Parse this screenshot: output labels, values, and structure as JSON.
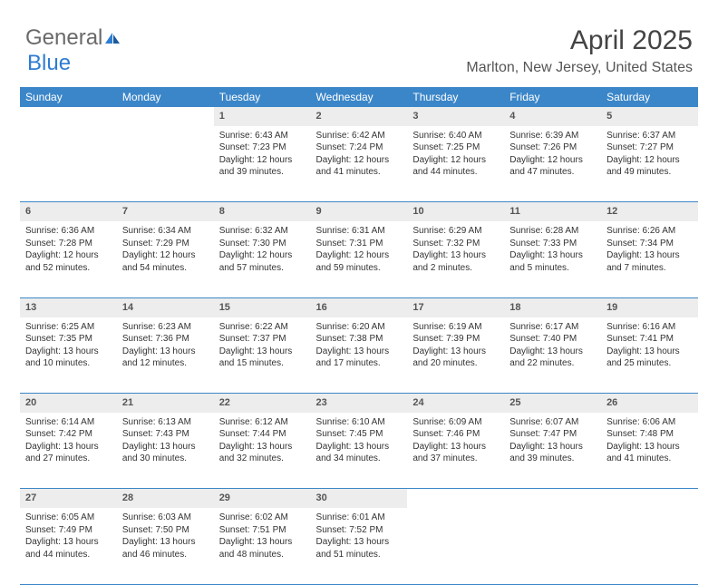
{
  "logo": {
    "text1": "General",
    "text2": "Blue"
  },
  "title": "April 2025",
  "location": "Marlton, New Jersey, United States",
  "colors": {
    "header_bg": "#3b86c8",
    "header_text": "#ffffff",
    "daynum_bg": "#ededed",
    "row_divider": "#3b86c8",
    "logo_gray": "#6a6a6a",
    "logo_blue": "#2d7dd2"
  },
  "weekdays": [
    "Sunday",
    "Monday",
    "Tuesday",
    "Wednesday",
    "Thursday",
    "Friday",
    "Saturday"
  ],
  "weeks": [
    {
      "days": [
        null,
        null,
        {
          "n": "1",
          "sunrise": "6:43 AM",
          "sunset": "7:23 PM",
          "day_h": "12",
          "day_m": "39"
        },
        {
          "n": "2",
          "sunrise": "6:42 AM",
          "sunset": "7:24 PM",
          "day_h": "12",
          "day_m": "41"
        },
        {
          "n": "3",
          "sunrise": "6:40 AM",
          "sunset": "7:25 PM",
          "day_h": "12",
          "day_m": "44"
        },
        {
          "n": "4",
          "sunrise": "6:39 AM",
          "sunset": "7:26 PM",
          "day_h": "12",
          "day_m": "47"
        },
        {
          "n": "5",
          "sunrise": "6:37 AM",
          "sunset": "7:27 PM",
          "day_h": "12",
          "day_m": "49"
        }
      ]
    },
    {
      "days": [
        {
          "n": "6",
          "sunrise": "6:36 AM",
          "sunset": "7:28 PM",
          "day_h": "12",
          "day_m": "52"
        },
        {
          "n": "7",
          "sunrise": "6:34 AM",
          "sunset": "7:29 PM",
          "day_h": "12",
          "day_m": "54"
        },
        {
          "n": "8",
          "sunrise": "6:32 AM",
          "sunset": "7:30 PM",
          "day_h": "12",
          "day_m": "57"
        },
        {
          "n": "9",
          "sunrise": "6:31 AM",
          "sunset": "7:31 PM",
          "day_h": "12",
          "day_m": "59"
        },
        {
          "n": "10",
          "sunrise": "6:29 AM",
          "sunset": "7:32 PM",
          "day_h": "13",
          "day_m": "2"
        },
        {
          "n": "11",
          "sunrise": "6:28 AM",
          "sunset": "7:33 PM",
          "day_h": "13",
          "day_m": "5"
        },
        {
          "n": "12",
          "sunrise": "6:26 AM",
          "sunset": "7:34 PM",
          "day_h": "13",
          "day_m": "7"
        }
      ]
    },
    {
      "days": [
        {
          "n": "13",
          "sunrise": "6:25 AM",
          "sunset": "7:35 PM",
          "day_h": "13",
          "day_m": "10"
        },
        {
          "n": "14",
          "sunrise": "6:23 AM",
          "sunset": "7:36 PM",
          "day_h": "13",
          "day_m": "12"
        },
        {
          "n": "15",
          "sunrise": "6:22 AM",
          "sunset": "7:37 PM",
          "day_h": "13",
          "day_m": "15"
        },
        {
          "n": "16",
          "sunrise": "6:20 AM",
          "sunset": "7:38 PM",
          "day_h": "13",
          "day_m": "17"
        },
        {
          "n": "17",
          "sunrise": "6:19 AM",
          "sunset": "7:39 PM",
          "day_h": "13",
          "day_m": "20"
        },
        {
          "n": "18",
          "sunrise": "6:17 AM",
          "sunset": "7:40 PM",
          "day_h": "13",
          "day_m": "22"
        },
        {
          "n": "19",
          "sunrise": "6:16 AM",
          "sunset": "7:41 PM",
          "day_h": "13",
          "day_m": "25"
        }
      ]
    },
    {
      "days": [
        {
          "n": "20",
          "sunrise": "6:14 AM",
          "sunset": "7:42 PM",
          "day_h": "13",
          "day_m": "27"
        },
        {
          "n": "21",
          "sunrise": "6:13 AM",
          "sunset": "7:43 PM",
          "day_h": "13",
          "day_m": "30"
        },
        {
          "n": "22",
          "sunrise": "6:12 AM",
          "sunset": "7:44 PM",
          "day_h": "13",
          "day_m": "32"
        },
        {
          "n": "23",
          "sunrise": "6:10 AM",
          "sunset": "7:45 PM",
          "day_h": "13",
          "day_m": "34"
        },
        {
          "n": "24",
          "sunrise": "6:09 AM",
          "sunset": "7:46 PM",
          "day_h": "13",
          "day_m": "37"
        },
        {
          "n": "25",
          "sunrise": "6:07 AM",
          "sunset": "7:47 PM",
          "day_h": "13",
          "day_m": "39"
        },
        {
          "n": "26",
          "sunrise": "6:06 AM",
          "sunset": "7:48 PM",
          "day_h": "13",
          "day_m": "41"
        }
      ]
    },
    {
      "days": [
        {
          "n": "27",
          "sunrise": "6:05 AM",
          "sunset": "7:49 PM",
          "day_h": "13",
          "day_m": "44"
        },
        {
          "n": "28",
          "sunrise": "6:03 AM",
          "sunset": "7:50 PM",
          "day_h": "13",
          "day_m": "46"
        },
        {
          "n": "29",
          "sunrise": "6:02 AM",
          "sunset": "7:51 PM",
          "day_h": "13",
          "day_m": "48"
        },
        {
          "n": "30",
          "sunrise": "6:01 AM",
          "sunset": "7:52 PM",
          "day_h": "13",
          "day_m": "51"
        },
        null,
        null,
        null
      ]
    }
  ]
}
